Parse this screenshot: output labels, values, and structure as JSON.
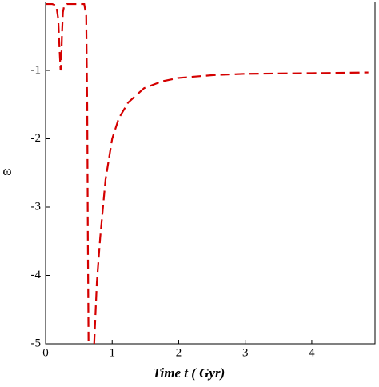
{
  "chart_data": {
    "type": "line",
    "x_label": "Time t ( Gyr)",
    "y_label": "ω",
    "xlim": [
      0,
      4.95
    ],
    "ylim": [
      -5,
      0
    ],
    "xticks": [
      0,
      1,
      2,
      3,
      4
    ],
    "yticks": [
      -1,
      -2,
      -3,
      -4,
      -5
    ],
    "series": [
      {
        "name": "ω",
        "color": "#d40000",
        "x": [
          0,
          0.1,
          0.16,
          0.19,
          0.21,
          0.225,
          0.235,
          0.245,
          0.26,
          0.28,
          0.32,
          0.45,
          0.58,
          0.61,
          0.625,
          0.635,
          0.645,
          0.7,
          0.73,
          0.77,
          0.82,
          0.9,
          1.0,
          1.1,
          1.24,
          1.48,
          1.75,
          2.0,
          2.5,
          3.0,
          3.5,
          4.0,
          4.5,
          4.85
        ],
        "values": [
          -0.03,
          -0.03,
          -0.05,
          -0.25,
          -0.7,
          -1.0,
          -0.9,
          -0.5,
          -0.15,
          -0.05,
          -0.03,
          -0.03,
          -0.03,
          -0.2,
          -1.5,
          -3.5,
          -5,
          null,
          -5,
          -4.1,
          -3.45,
          -2.6,
          -2.0,
          -1.7,
          -1.47,
          -1.26,
          -1.16,
          -1.11,
          -1.07,
          -1.05,
          -1.045,
          -1.04,
          -1.035,
          -1.03
        ]
      }
    ]
  }
}
